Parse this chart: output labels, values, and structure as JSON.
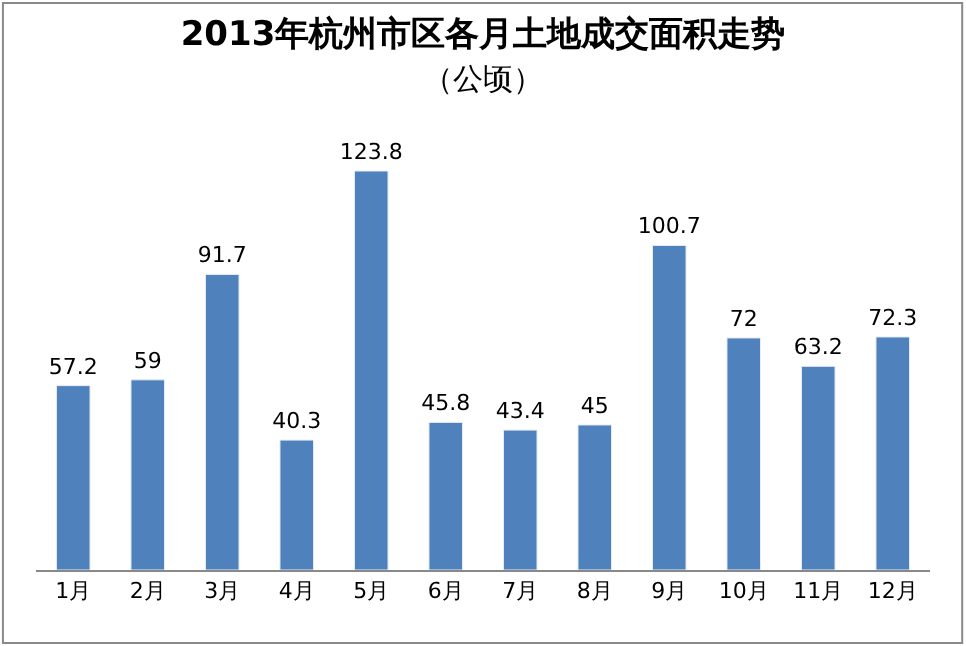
{
  "chart_data": {
    "type": "bar",
    "title": "2013年杭州市区各月土地成交面积走势",
    "subtitle": "（公顷）",
    "categories": [
      "1月",
      "2月",
      "3月",
      "4月",
      "5月",
      "6月",
      "7月",
      "8月",
      "9月",
      "10月",
      "11月",
      "12月"
    ],
    "values": [
      57.2,
      59,
      91.7,
      40.3,
      123.8,
      45.8,
      43.4,
      45,
      100.7,
      72,
      63.2,
      72.3
    ],
    "color": "#4f81bd",
    "data_labels": true,
    "legend": false
  }
}
